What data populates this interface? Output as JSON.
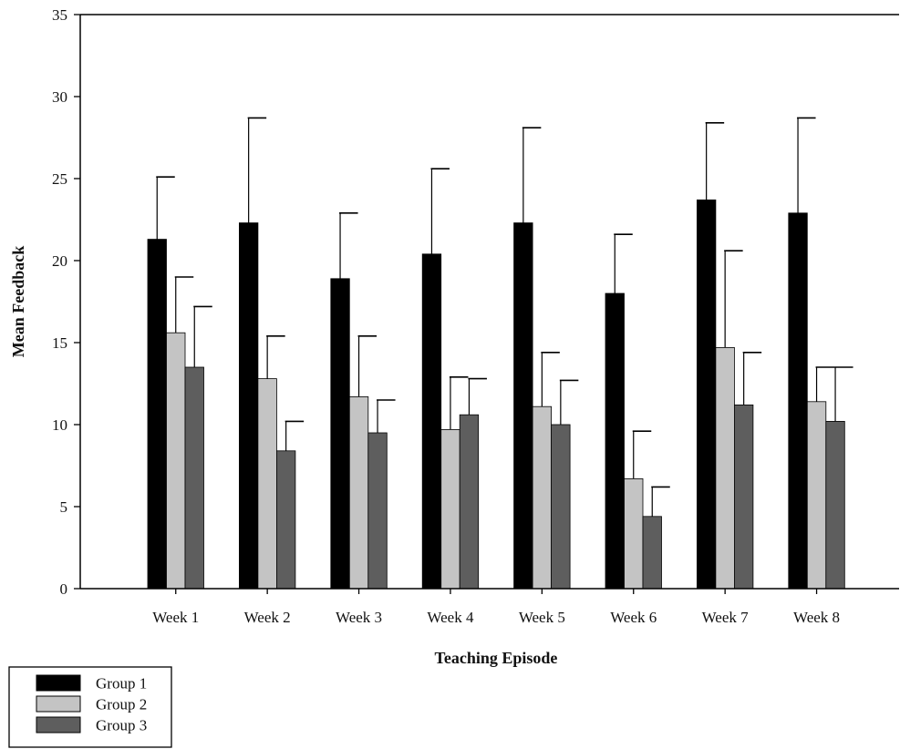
{
  "chart_data": {
    "type": "bar",
    "title": "",
    "xlabel": "Teaching Episode",
    "ylabel": "Mean Feedback",
    "ylim": [
      0,
      35
    ],
    "yticks": [
      0,
      5,
      10,
      15,
      20,
      25,
      30,
      35
    ],
    "grid": false,
    "error_bars": "upper",
    "legend_position": "bottom-left",
    "categories": [
      "Week 1",
      "Week 2",
      "Week 3",
      "Week 4",
      "Week 5",
      "Week 6",
      "Week 7",
      "Week 8"
    ],
    "series": [
      {
        "name": "Group 1",
        "color": "#000000",
        "values": [
          21.3,
          22.3,
          18.9,
          20.4,
          22.3,
          18.0,
          23.7,
          22.9
        ],
        "errors": [
          3.8,
          6.4,
          4.0,
          5.2,
          5.8,
          3.6,
          4.7,
          5.8
        ]
      },
      {
        "name": "Group 2",
        "color": "#c4c4c4",
        "values": [
          15.6,
          12.8,
          11.7,
          9.7,
          11.1,
          6.7,
          14.7,
          11.4
        ],
        "errors": [
          3.4,
          2.6,
          3.7,
          3.2,
          3.3,
          2.9,
          5.9,
          2.1
        ]
      },
      {
        "name": "Group 3",
        "color": "#5e5e5e",
        "values": [
          13.5,
          8.4,
          9.5,
          10.6,
          10.0,
          4.4,
          11.2,
          10.2
        ],
        "errors": [
          3.7,
          1.8,
          2.0,
          2.2,
          2.7,
          1.8,
          3.2,
          3.3
        ]
      }
    ]
  }
}
